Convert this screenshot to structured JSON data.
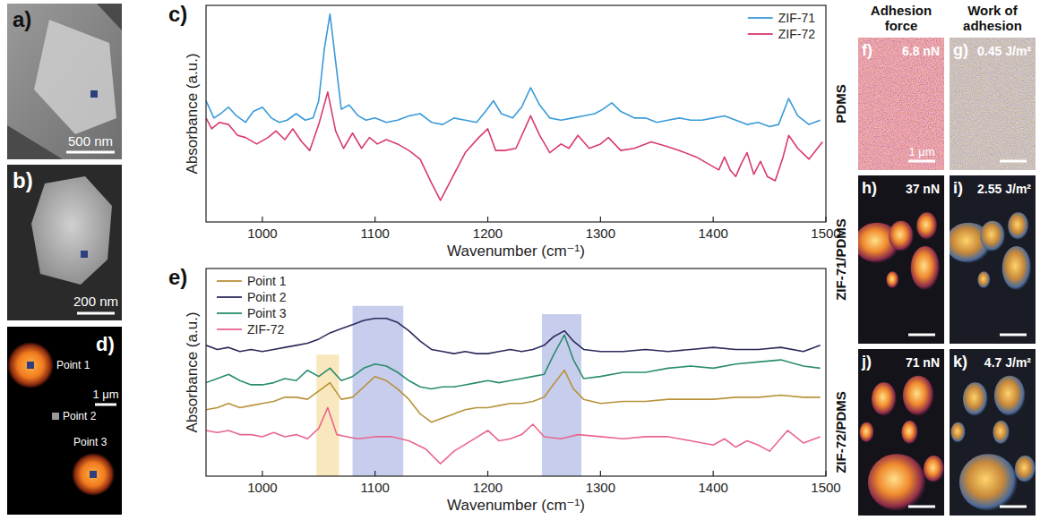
{
  "chart_data": [
    {
      "type": "line",
      "panel_label": "c)",
      "x_label": "Wavenumber (cm⁻¹)",
      "y_label": "Absorbance (a.u.)",
      "xlim": [
        950,
        1500
      ],
      "xticks": [
        1000,
        1100,
        1200,
        1300,
        1400,
        1500
      ],
      "ylim": [
        0,
        10
      ],
      "tick_labels": "x",
      "grid": false,
      "legend": "upper right",
      "series": [
        {
          "name": "ZIF-71",
          "color": "#3a9ad9",
          "x": [
            950,
            957,
            963,
            970,
            977,
            985,
            992,
            1000,
            1008,
            1015,
            1022,
            1030,
            1038,
            1045,
            1050,
            1055,
            1060,
            1065,
            1070,
            1077,
            1085,
            1092,
            1100,
            1110,
            1120,
            1130,
            1140,
            1150,
            1160,
            1170,
            1180,
            1190,
            1198,
            1205,
            1212,
            1222,
            1230,
            1238,
            1246,
            1255,
            1265,
            1275,
            1285,
            1295,
            1302,
            1310,
            1318,
            1330,
            1340,
            1350,
            1360,
            1370,
            1380,
            1390,
            1400,
            1410,
            1420,
            1430,
            1440,
            1450,
            1458,
            1467,
            1475,
            1485,
            1495
          ],
          "values": [
            5.6,
            4.8,
            5.0,
            5.3,
            4.9,
            4.6,
            5.1,
            5.3,
            4.8,
            4.6,
            4.7,
            5.0,
            4.7,
            4.8,
            5.6,
            8.0,
            9.6,
            7.4,
            5.2,
            5.4,
            4.9,
            4.7,
            4.8,
            4.6,
            4.7,
            4.9,
            5.0,
            4.6,
            4.5,
            4.8,
            4.7,
            4.6,
            5.1,
            5.6,
            5.0,
            4.8,
            5.3,
            6.2,
            5.4,
            4.8,
            4.7,
            4.8,
            4.9,
            5.0,
            5.2,
            5.5,
            5.1,
            4.8,
            4.8,
            4.6,
            4.7,
            4.8,
            4.7,
            4.7,
            4.8,
            4.9,
            4.7,
            4.5,
            4.6,
            4.4,
            4.5,
            5.7,
            4.9,
            4.5,
            4.7
          ]
        },
        {
          "name": "ZIF-72",
          "color": "#d93a6e",
          "x": [
            950,
            955,
            962,
            970,
            978,
            985,
            995,
            1005,
            1012,
            1020,
            1027,
            1035,
            1042,
            1050,
            1058,
            1065,
            1072,
            1080,
            1088,
            1095,
            1102,
            1110,
            1120,
            1130,
            1140,
            1150,
            1158,
            1168,
            1180,
            1192,
            1200,
            1207,
            1215,
            1225,
            1238,
            1246,
            1255,
            1265,
            1272,
            1280,
            1290,
            1300,
            1307,
            1318,
            1330,
            1345,
            1358,
            1370,
            1385,
            1395,
            1405,
            1410,
            1415,
            1420,
            1425,
            1430,
            1436,
            1442,
            1448,
            1455,
            1462,
            1467,
            1475,
            1485,
            1497
          ],
          "values": [
            4.8,
            4.3,
            4.6,
            4.5,
            4.0,
            3.9,
            3.6,
            3.9,
            4.2,
            3.8,
            4.3,
            3.7,
            3.3,
            4.5,
            6.0,
            4.2,
            3.4,
            4.1,
            3.4,
            3.9,
            3.6,
            3.8,
            3.6,
            3.3,
            2.9,
            1.8,
            1.0,
            2.0,
            3.2,
            3.9,
            4.3,
            3.3,
            3.3,
            3.4,
            4.9,
            4.0,
            3.2,
            3.6,
            3.4,
            4.0,
            3.4,
            3.6,
            3.9,
            3.3,
            3.4,
            3.7,
            3.5,
            3.3,
            3.0,
            2.7,
            2.4,
            3.0,
            2.4,
            2.1,
            2.7,
            3.2,
            2.2,
            2.8,
            2.1,
            1.9,
            3.0,
            4.0,
            3.4,
            2.9,
            3.7
          ]
        }
      ]
    },
    {
      "type": "line",
      "panel_label": "e)",
      "x_label": "Wavenumber (cm⁻¹)",
      "y_label": "Absorbance (a.u.)",
      "xlim": [
        950,
        1500
      ],
      "xticks": [
        1000,
        1100,
        1200,
        1300,
        1400,
        1500
      ],
      "ylim": [
        0,
        10
      ],
      "tick_labels": "x",
      "grid": false,
      "legend": "upper left",
      "bands": [
        {
          "x0": 1048,
          "x1": 1068,
          "y0": 0,
          "y1": 5.85,
          "color": "#f6dc9a"
        },
        {
          "x0": 1080,
          "x1": 1125,
          "y0": 0,
          "y1": 8.2,
          "color": "#a9b2e2"
        },
        {
          "x0": 1248,
          "x1": 1283,
          "y0": 0,
          "y1": 7.8,
          "color": "#a9b2e2"
        }
      ],
      "series": [
        {
          "name": "Point 1",
          "color": "#b8923a",
          "x": [
            950,
            960,
            970,
            980,
            990,
            1000,
            1010,
            1020,
            1030,
            1040,
            1050,
            1060,
            1070,
            1080,
            1090,
            1100,
            1110,
            1120,
            1130,
            1140,
            1150,
            1160,
            1170,
            1180,
            1190,
            1200,
            1210,
            1220,
            1230,
            1240,
            1250,
            1258,
            1268,
            1276,
            1285,
            1300,
            1320,
            1340,
            1360,
            1380,
            1400,
            1420,
            1440,
            1460,
            1480,
            1495
          ],
          "values": [
            3.2,
            3.3,
            3.5,
            3.3,
            3.4,
            3.5,
            3.6,
            3.8,
            3.8,
            3.7,
            4.1,
            4.5,
            3.7,
            3.8,
            4.3,
            4.8,
            4.6,
            4.2,
            3.7,
            3.0,
            2.6,
            2.8,
            3.0,
            3.2,
            3.3,
            3.3,
            3.4,
            3.5,
            3.5,
            3.6,
            3.8,
            4.4,
            5.1,
            4.2,
            3.7,
            3.5,
            3.6,
            3.6,
            3.7,
            3.7,
            3.7,
            3.8,
            3.8,
            3.9,
            3.8,
            3.8
          ]
        },
        {
          "name": "Point 2",
          "color": "#2b2a5c",
          "x": [
            950,
            960,
            970,
            980,
            990,
            1000,
            1010,
            1020,
            1030,
            1040,
            1050,
            1060,
            1070,
            1080,
            1090,
            1100,
            1110,
            1120,
            1130,
            1140,
            1150,
            1160,
            1170,
            1180,
            1190,
            1200,
            1210,
            1220,
            1230,
            1240,
            1250,
            1258,
            1268,
            1276,
            1285,
            1300,
            1320,
            1340,
            1360,
            1380,
            1400,
            1420,
            1440,
            1460,
            1480,
            1495
          ],
          "values": [
            6.3,
            6.1,
            6.2,
            6.0,
            6.1,
            6.0,
            6.1,
            6.2,
            6.3,
            6.4,
            6.6,
            6.9,
            7.1,
            7.3,
            7.5,
            7.6,
            7.6,
            7.4,
            7.0,
            6.5,
            6.1,
            6.0,
            5.9,
            6.0,
            5.9,
            5.9,
            6.0,
            6.1,
            6.0,
            6.1,
            6.3,
            6.7,
            7.0,
            6.5,
            6.1,
            6.0,
            6.0,
            6.1,
            6.0,
            6.1,
            6.2,
            6.1,
            6.1,
            6.2,
            6.0,
            6.3
          ]
        },
        {
          "name": "Point 3",
          "color": "#2a8c6e",
          "x": [
            950,
            960,
            970,
            980,
            990,
            1000,
            1010,
            1020,
            1030,
            1040,
            1050,
            1060,
            1070,
            1080,
            1090,
            1100,
            1110,
            1120,
            1130,
            1140,
            1150,
            1160,
            1170,
            1180,
            1190,
            1200,
            1210,
            1220,
            1230,
            1240,
            1250,
            1258,
            1268,
            1276,
            1285,
            1300,
            1320,
            1340,
            1360,
            1380,
            1400,
            1420,
            1440,
            1460,
            1480,
            1495
          ],
          "values": [
            4.5,
            4.7,
            4.9,
            4.6,
            4.4,
            4.4,
            4.5,
            4.7,
            4.6,
            5.1,
            4.8,
            5.2,
            4.6,
            4.8,
            5.2,
            5.4,
            5.3,
            5.0,
            4.6,
            4.3,
            4.2,
            4.3,
            4.3,
            4.4,
            4.5,
            4.6,
            4.5,
            4.6,
            4.7,
            4.8,
            4.9,
            5.8,
            6.8,
            5.6,
            4.7,
            4.8,
            5.0,
            5.0,
            5.2,
            5.3,
            5.2,
            5.4,
            5.5,
            5.6,
            5.3,
            5.2
          ]
        },
        {
          "name": "ZIF-72",
          "color": "#e8668f",
          "x": [
            950,
            960,
            970,
            980,
            990,
            1000,
            1010,
            1020,
            1030,
            1040,
            1050,
            1058,
            1066,
            1075,
            1085,
            1100,
            1115,
            1130,
            1145,
            1158,
            1170,
            1185,
            1200,
            1210,
            1220,
            1230,
            1240,
            1250,
            1265,
            1280,
            1300,
            1320,
            1340,
            1360,
            1380,
            1400,
            1410,
            1420,
            1430,
            1440,
            1450,
            1466,
            1480,
            1495
          ],
          "values": [
            2.2,
            2.1,
            2.2,
            2.0,
            2.0,
            1.9,
            2.1,
            1.9,
            2.0,
            1.8,
            2.3,
            3.3,
            2.0,
            1.9,
            1.8,
            1.9,
            1.9,
            1.7,
            1.3,
            0.6,
            1.2,
            1.7,
            2.2,
            1.7,
            1.8,
            2.0,
            2.5,
            1.9,
            1.8,
            2.0,
            1.9,
            1.8,
            1.9,
            1.9,
            1.7,
            1.5,
            1.8,
            1.4,
            1.7,
            1.5,
            1.2,
            2.2,
            1.6,
            1.9
          ]
        }
      ]
    }
  ],
  "image_panels": [
    {
      "label": "a)",
      "scale_bar": "500 nm"
    },
    {
      "label": "b)",
      "scale_bar": "200 nm"
    },
    {
      "label": "d)",
      "scale_bar": "1 μm",
      "points": [
        "Point 1",
        "Point 2",
        "Point 3"
      ]
    }
  ],
  "adhesion_maps": {
    "columns": [
      "Adhesion force",
      "Work of adhesion"
    ],
    "rows": [
      {
        "label": "PDMS",
        "panels": [
          {
            "label": "f)",
            "value": "6.8 nN",
            "scale_bar": "1 μm"
          },
          {
            "label": "g)",
            "value": "0.45 J/m²"
          }
        ]
      },
      {
        "label": "ZIF-71/PDMS",
        "panels": [
          {
            "label": "h)",
            "value": "37 nN"
          },
          {
            "label": "i)",
            "value": "2.55 J/m²"
          }
        ]
      },
      {
        "label": "ZIF-72/PDMS",
        "panels": [
          {
            "label": "j)",
            "value": "71 nN"
          },
          {
            "label": "k)",
            "value": "4.7 J/m²"
          }
        ]
      }
    ]
  }
}
